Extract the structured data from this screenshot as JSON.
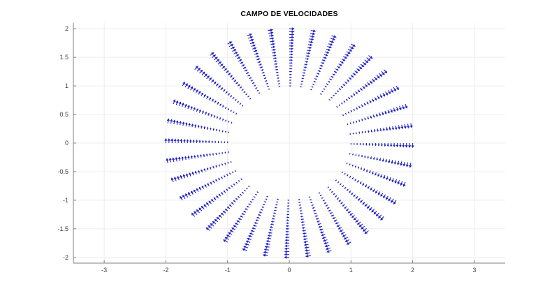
{
  "figure": {
    "title": "CAMPO DE VELOCIDADES",
    "background": "#ffffff"
  },
  "chart_data": {
    "type": "quiver",
    "title": "CAMPO DE VELOCIDADES",
    "xlabel": "",
    "ylabel": "",
    "xlim": [
      -3.5,
      3.5
    ],
    "ylim": [
      -2.1,
      2.1
    ],
    "xticks": [
      -3,
      -2,
      -1,
      0,
      1,
      2,
      3
    ],
    "xtick_labels": [
      "-3",
      "-2",
      "-1",
      "0",
      "1",
      "2",
      "3"
    ],
    "yticks": [
      2,
      1.5,
      1,
      0.5,
      0,
      -0.5,
      -1,
      -1.5,
      -2
    ],
    "ytick_labels": [
      "2",
      "1.5",
      "1",
      "0.5",
      "0",
      "-0.5",
      "-1",
      "-1.5",
      "-2"
    ],
    "grid": true,
    "legend": false,
    "field": {
      "description": "Tangential (clockwise) rotational velocity field v = (y, -x) sampled on an annular polar grid; arrow length increases with radius",
      "direction": "clockwise",
      "r_min": 1.0,
      "r_max": 2.0,
      "r_step": 0.05,
      "theta_min_deg": 0,
      "theta_max_deg": 350,
      "theta_step_deg": 10,
      "arrow_len_at_r1": 0.02,
      "arrow_len_at_r2": 0.075,
      "head_fraction": 0.5,
      "head_angle_rad": 0.5
    },
    "colors": {
      "arrow": "#2121c8",
      "grid": "#ececec",
      "axis": "#7f7f7f",
      "tick_label": "#404040",
      "title": "#000000"
    }
  }
}
